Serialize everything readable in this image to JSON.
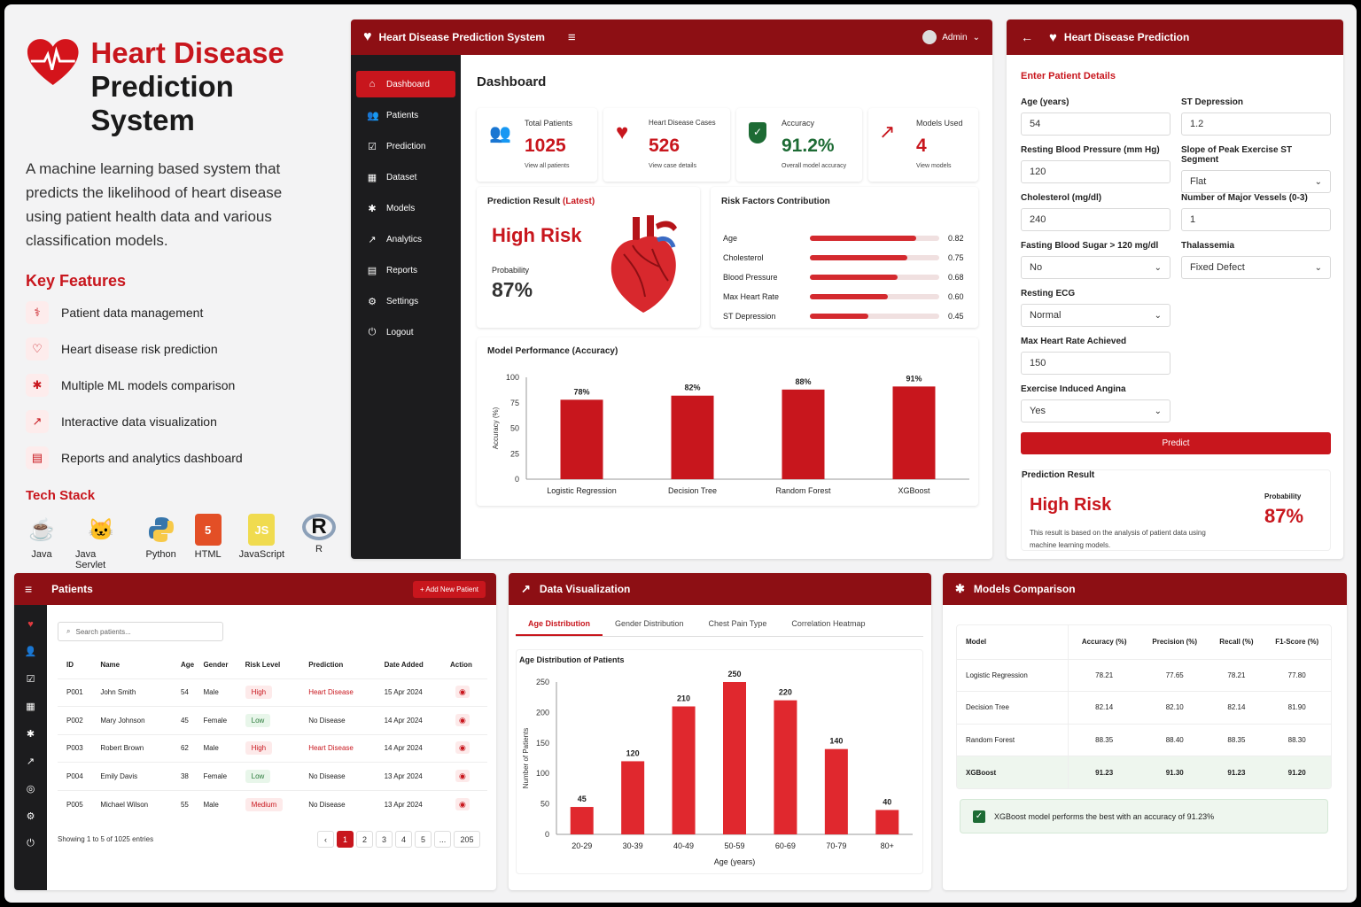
{
  "intro": {
    "title_line1": "Heart Disease",
    "title_line2": "Prediction System",
    "desc_lines": [
      "A machine learning based system that",
      "predicts the likelihood of heart disease",
      "using patient health data and various",
      "classification models."
    ],
    "features_title": "Key Features",
    "features": [
      {
        "icon": "patient-data-icon",
        "label": "Patient data management"
      },
      {
        "icon": "heart-risk-icon",
        "label": "Heart disease risk prediction"
      },
      {
        "icon": "ml-models-icon",
        "label": "Multiple ML models comparison"
      },
      {
        "icon": "chart-line-icon",
        "label": "Interactive data visualization"
      },
      {
        "icon": "report-icon",
        "label": "Reports and analytics dashboard"
      }
    ],
    "tech_title": "Tech Stack",
    "tech": [
      {
        "name": "Java",
        "icon": "java-icon",
        "color": "#e76f00"
      },
      {
        "name": "Java Servlet",
        "icon": "tomcat-icon",
        "color": "#f5a623"
      },
      {
        "name": "Python",
        "icon": "python-icon",
        "color": "#3776ab"
      },
      {
        "name": "HTML",
        "icon": "html5-icon",
        "color": "#e34f26"
      },
      {
        "name": "JavaScript",
        "icon": "js-icon",
        "color": "#f0db4f"
      },
      {
        "name": "R",
        "icon": "r-icon",
        "color": "#276dc3"
      }
    ]
  },
  "dashboard": {
    "app_title": "Heart Disease Prediction System",
    "user": "Admin",
    "page_title": "Dashboard",
    "nav": [
      "Dashboard",
      "Patients",
      "Prediction",
      "Dataset",
      "Models",
      "Analytics",
      "Reports",
      "Settings",
      "Logout"
    ],
    "stats": [
      {
        "label": "Total Patients",
        "value": "1025",
        "sub": "View all patients",
        "icon": "users-icon"
      },
      {
        "label": "Heart Disease Cases",
        "value": "526",
        "sub": "View case details",
        "icon": "heart-icon"
      },
      {
        "label": "Accuracy",
        "value": "91.2%",
        "sub": "Overall model accuracy",
        "icon": "shield-check-icon"
      },
      {
        "label": "Models Used",
        "value": "4",
        "sub": "View models",
        "icon": "trend-icon"
      }
    ],
    "prediction": {
      "title": "Prediction Result",
      "tag": "(Latest)",
      "risk": "High Risk",
      "prob_label": "Probability",
      "prob": "87%"
    },
    "risk_factors": {
      "title": "Risk Factors Contribution",
      "items": [
        {
          "name": "Age",
          "value": 0.82,
          "label": "0.82"
        },
        {
          "name": "Cholesterol",
          "value": 0.75,
          "label": "0.75"
        },
        {
          "name": "Blood Pressure",
          "value": 0.68,
          "label": "0.68"
        },
        {
          "name": "Max Heart Rate",
          "value": 0.6,
          "label": "0.60"
        },
        {
          "name": "ST Depression",
          "value": 0.45,
          "label": "0.45"
        }
      ]
    }
  },
  "form": {
    "title": "Heart Disease Prediction",
    "section": "Enter Patient Details",
    "fields": [
      {
        "label": "Age (years)",
        "value": "54",
        "select": false
      },
      {
        "label": "ST Depression",
        "value": "1.2",
        "select": false
      },
      {
        "label": "Resting Blood Pressure (mm Hg)",
        "value": "120",
        "select": false
      },
      {
        "label": "Slope of Peak Exercise ST Segment",
        "value": "Flat",
        "select": true
      },
      {
        "label": "Cholesterol (mg/dl)",
        "value": "240",
        "select": false
      },
      {
        "label": "Number of Major Vessels (0-3)",
        "value": "1",
        "select": false
      },
      {
        "label": "Fasting Blood Sugar > 120 mg/dl",
        "value": "No",
        "select": true
      },
      {
        "label": "Thalassemia",
        "value": "Fixed Defect",
        "select": true
      },
      {
        "label": "Resting ECG",
        "value": "Normal",
        "select": true
      },
      {
        "label": "Max Heart Rate Achieved",
        "value": "150",
        "select": false
      },
      {
        "label": "Exercise Induced Angina",
        "value": "Yes",
        "select": true
      }
    ],
    "predict_btn": "Predict",
    "result_title": "Prediction Result",
    "result_risk": "High Risk",
    "prob_label": "Probability",
    "prob": "87%",
    "note_lines": [
      "This result is based on the analysis of patient data using",
      "machine learning models."
    ]
  },
  "patients": {
    "title": "Patients",
    "add_btn": "+ Add New Patient",
    "search_placeholder": "Search patients...",
    "columns": [
      "ID",
      "Name",
      "Age",
      "Gender",
      "Risk Level",
      "Prediction",
      "Date Added",
      "Action"
    ],
    "rows": [
      [
        "P001",
        "John Smith",
        "54",
        "Male",
        "High",
        "Heart Disease",
        "15 Apr 2024"
      ],
      [
        "P002",
        "Mary Johnson",
        "45",
        "Female",
        "Low",
        "No Disease",
        "14 Apr 2024"
      ],
      [
        "P003",
        "Robert Brown",
        "62",
        "Male",
        "High",
        "Heart Disease",
        "14 Apr 2024"
      ],
      [
        "P004",
        "Emily Davis",
        "38",
        "Female",
        "Low",
        "No Disease",
        "13 Apr 2024"
      ],
      [
        "P005",
        "Michael Wilson",
        "55",
        "Male",
        "Medium",
        "No Disease",
        "13 Apr 2024"
      ]
    ],
    "footer": "Showing 1 to 5 of 1025 entries",
    "pages": [
      "‹",
      "1",
      "2",
      "3",
      "4",
      "5",
      "...",
      "205"
    ]
  },
  "dataviz": {
    "title": "Data Visualization",
    "tabs": [
      "Age Distribution",
      "Gender Distribution",
      "Chest Pain Type",
      "Correlation Heatmap"
    ]
  },
  "models": {
    "title": "Models Comparison",
    "columns": [
      "Model",
      "Accuracy (%)",
      "Precision (%)",
      "Recall (%)",
      "F1-Score (%)"
    ],
    "rows": [
      [
        "Logistic Regression",
        "78.21",
        "77.65",
        "78.21",
        "77.80"
      ],
      [
        "Decision Tree",
        "82.14",
        "82.10",
        "82.14",
        "81.90"
      ],
      [
        "Random Forest",
        "88.35",
        "88.40",
        "88.35",
        "88.30"
      ],
      [
        "XGBoost",
        "91.23",
        "91.30",
        "91.23",
        "91.20"
      ]
    ],
    "note": "XGBoost model performs the best with an accuracy of 91.23%"
  },
  "chart_data": [
    {
      "type": "bar",
      "title": "Model Performance (Accuracy)",
      "categories": [
        "Logistic Regression",
        "Decision Tree",
        "Random Forest",
        "XGBoost"
      ],
      "values": [
        78,
        82,
        88,
        91
      ],
      "labels": [
        "78%",
        "82%",
        "88%",
        "91%"
      ],
      "ylabel": "Accuracy (%)",
      "xlabel": "",
      "ylim": [
        0,
        100
      ],
      "yticks": [
        0,
        25,
        50,
        75,
        100
      ]
    },
    {
      "type": "bar",
      "title": "Age Distribution of Patients",
      "categories": [
        "20-29",
        "30-39",
        "40-49",
        "50-59",
        "60-69",
        "70-79",
        "80+"
      ],
      "values": [
        45,
        120,
        210,
        250,
        220,
        140,
        40
      ],
      "xlabel": "Age (years)",
      "ylabel": "Number of Patients",
      "ylim": [
        0,
        250
      ],
      "yticks": [
        0,
        50,
        100,
        150,
        200,
        250
      ]
    }
  ],
  "colors": {
    "brand": "#8d0f14",
    "accent": "#c8161d",
    "bar": "#c8161d",
    "bar2": "#e0282e"
  }
}
